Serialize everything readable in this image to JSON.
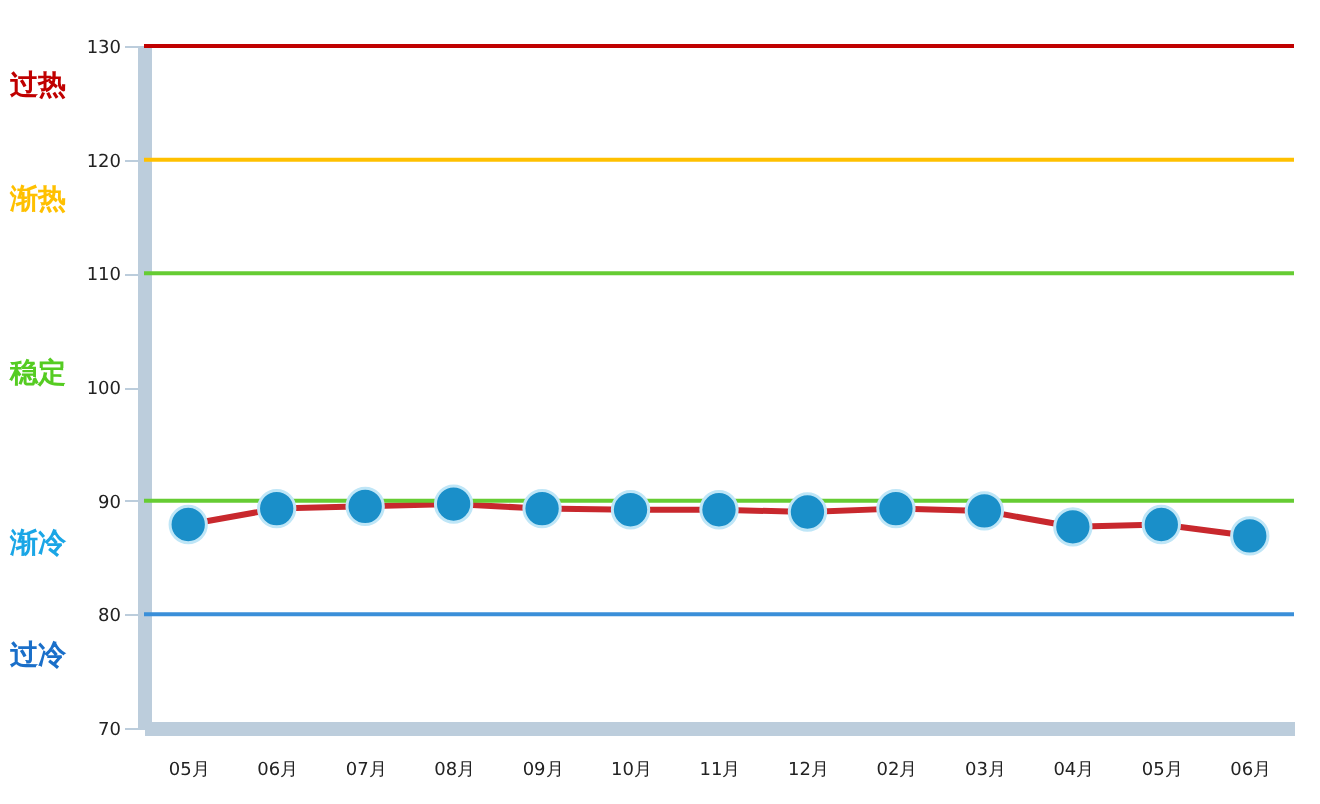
{
  "chart_data": {
    "type": "line",
    "categories": [
      "05月",
      "06月",
      "07月",
      "08月",
      "09月",
      "10月",
      "11月",
      "12月",
      "02月",
      "03月",
      "04月",
      "05月",
      "06月"
    ],
    "series": [
      {
        "color": "#c8282d",
        "values": [
          87.9,
          89.3,
          89.5,
          89.7,
          89.3,
          89.2,
          89.2,
          89.0,
          89.3,
          89.1,
          87.7,
          87.9,
          86.9
        ]
      }
    ],
    "ylim": [
      70,
      130
    ],
    "yticks": [
      70,
      80,
      90,
      100,
      110,
      120,
      130
    ],
    "grid": false,
    "marker": "circle",
    "line_style": "solid",
    "ref_lines": [
      {
        "axis": "y",
        "value": 130,
        "color": "#c00000"
      },
      {
        "axis": "y",
        "value": 120,
        "color": "#ffc000"
      },
      {
        "axis": "y",
        "value": 110,
        "color": "#66cc33"
      },
      {
        "axis": "y",
        "value": 90,
        "color": "#66cc33"
      },
      {
        "axis": "y",
        "value": 80,
        "color": "#3a8fd9"
      }
    ],
    "annotations": [
      "过热",
      "渐热",
      "稳定",
      "渐冷",
      "过冷"
    ]
  }
}
